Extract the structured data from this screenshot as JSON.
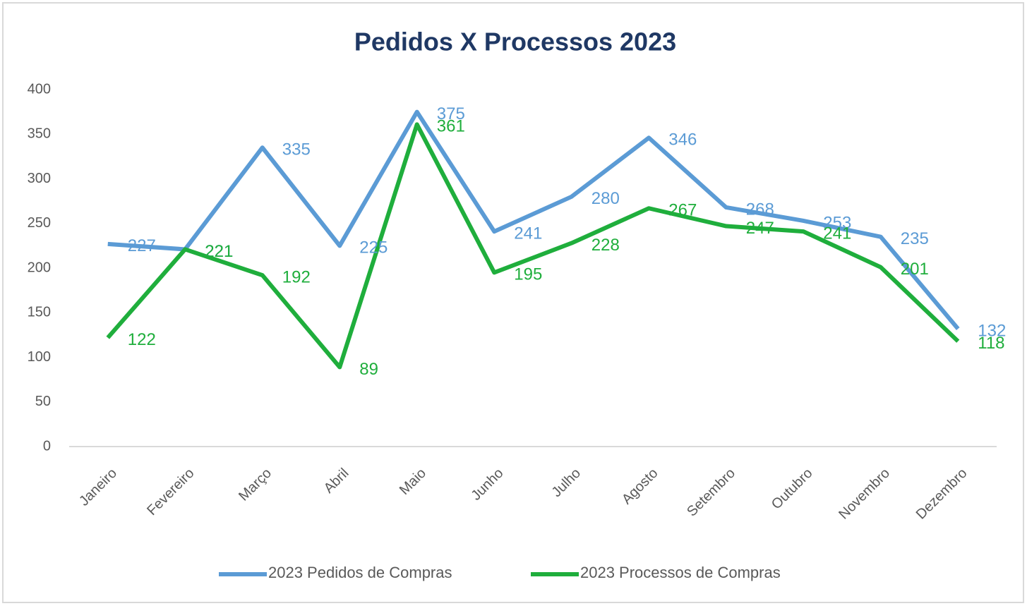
{
  "chart_data": {
    "type": "line",
    "title": "Pedidos X Processos 2023",
    "categories": [
      "Janeiro",
      "Fevereiro",
      "Março",
      "Abril",
      "Maio",
      "Junho",
      "Julho",
      "Agosto",
      "Setembro",
      "Outubro",
      "Novembro",
      "Dezembro"
    ],
    "series": [
      {
        "name": "2023 Pedidos de Compras",
        "color": "#5b9bd5",
        "values": [
          227,
          221,
          335,
          225,
          375,
          241,
          280,
          346,
          268,
          253,
          235,
          132
        ]
      },
      {
        "name": "2023 Processos de Compras",
        "color": "#1fae3c",
        "values": [
          122,
          221,
          192,
          89,
          361,
          195,
          228,
          267,
          247,
          241,
          201,
          118
        ]
      }
    ],
    "ylim": [
      0,
      400
    ],
    "yticks": [
      0,
      50,
      100,
      150,
      200,
      250,
      300,
      350,
      400
    ],
    "grid": false,
    "legend": "bottom"
  }
}
